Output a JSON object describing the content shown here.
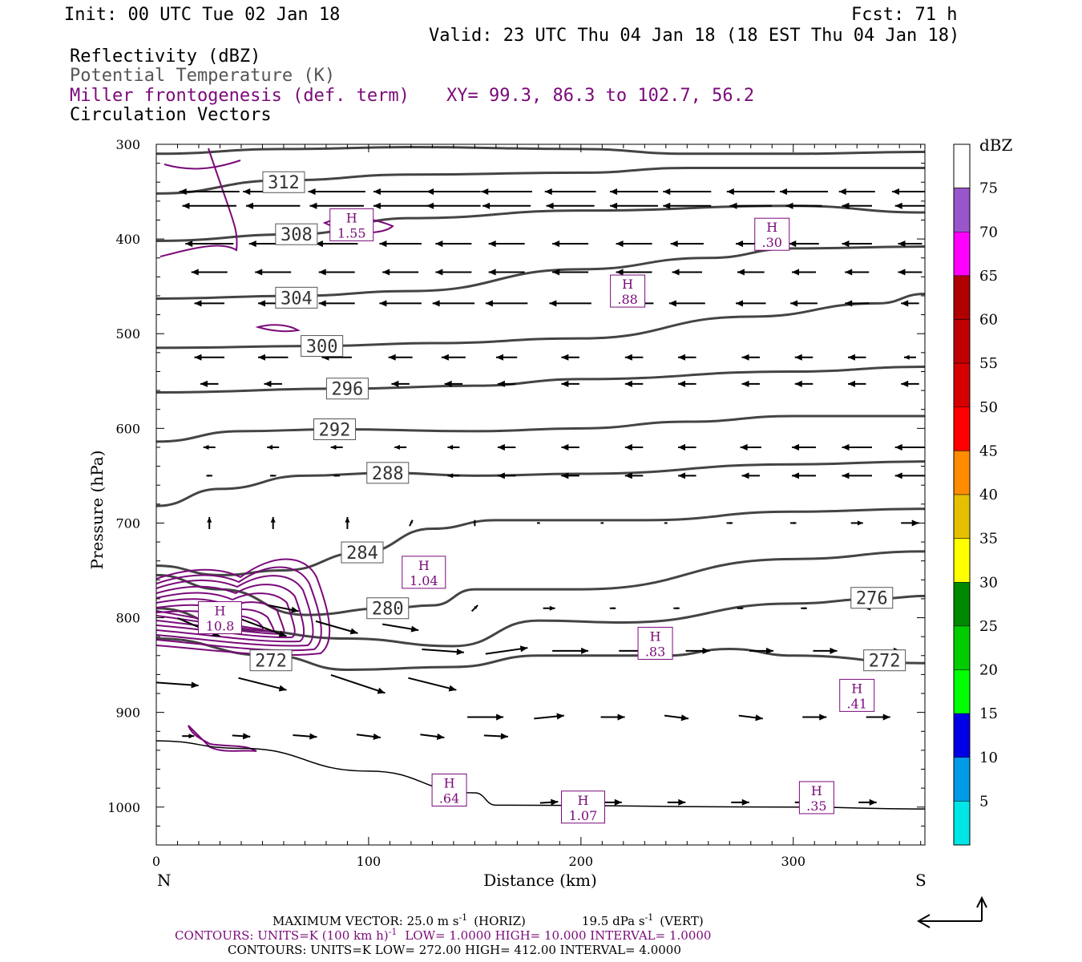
{
  "header": {
    "init": "Init: 00 UTC Tue 02 Jan 18",
    "fcst": "Fcst:   71 h",
    "valid": "Valid: 23 UTC Thu 04 Jan 18 (18 EST Thu 04 Jan 18)",
    "fields": [
      {
        "text": "Reflectivity (dBZ)",
        "color": "#000000"
      },
      {
        "text": "Potential Temperature (K)",
        "color": "#555555"
      },
      {
        "text": "Miller frontogenesis (def. term)",
        "color": "#7a0a7a"
      },
      {
        "text": "Circulation Vectors",
        "color": "#000000"
      }
    ],
    "xy": "XY=  99.3, 86.3 to 102.7, 56.2"
  },
  "colors": {
    "theta": "#444444",
    "frontogenesis": "#7a0a7a",
    "vectors": "#000000"
  },
  "chart_data": {
    "type": "cross-section",
    "xlabel": "Distance (km)",
    "ylabel": "Pressure (hPa)",
    "x_ticks": [
      0,
      100,
      200,
      300
    ],
    "y_ticks": [
      300,
      400,
      500,
      600,
      700,
      800,
      900,
      1000
    ],
    "xlim": [
      0,
      362
    ],
    "ylim": [
      300,
      1040
    ],
    "left_label": "N",
    "right_label": "S",
    "theta_contours": [
      {
        "value": "312",
        "label": [
          60,
          340
        ],
        "points": [
          [
            0,
            310
          ],
          [
            60,
            305
          ],
          [
            120,
            303
          ],
          [
            200,
            305
          ],
          [
            250,
            310
          ],
          [
            300,
            310
          ],
          [
            362,
            308
          ]
        ]
      },
      {
        "value": "312",
        "label": null,
        "points": [
          [
            0,
            352
          ],
          [
            60,
            338
          ],
          [
            120,
            332
          ],
          [
            200,
            330
          ],
          [
            250,
            325
          ],
          [
            300,
            325
          ],
          [
            362,
            325
          ]
        ]
      },
      {
        "value": "308",
        "label": [
          66,
          395
        ],
        "points": [
          [
            0,
            402
          ],
          [
            66,
            395
          ],
          [
            120,
            378
          ],
          [
            200,
            370
          ],
          [
            300,
            365
          ],
          [
            362,
            372
          ]
        ]
      },
      {
        "value": "304",
        "label": [
          66,
          462
        ],
        "points": [
          [
            0,
            463
          ],
          [
            66,
            460
          ],
          [
            120,
            455
          ],
          [
            200,
            432
          ],
          [
            260,
            420
          ],
          [
            300,
            410
          ],
          [
            362,
            408
          ]
        ]
      },
      {
        "value": "300",
        "label": [
          78,
          513
        ],
        "points": [
          [
            0,
            515
          ],
          [
            78,
            513
          ],
          [
            130,
            510
          ],
          [
            200,
            505
          ],
          [
            280,
            482
          ],
          [
            340,
            468
          ],
          [
            362,
            458
          ]
        ]
      },
      {
        "value": "296",
        "label": [
          90,
          558
        ],
        "points": [
          [
            0,
            562
          ],
          [
            90,
            558
          ],
          [
            150,
            555
          ],
          [
            200,
            548
          ],
          [
            300,
            540
          ],
          [
            362,
            535
          ]
        ]
      },
      {
        "value": "292",
        "label": [
          84,
          601
        ],
        "points": [
          [
            0,
            614
          ],
          [
            40,
            603
          ],
          [
            84,
            601
          ],
          [
            150,
            603
          ],
          [
            200,
            600
          ],
          [
            250,
            593
          ],
          [
            300,
            587
          ],
          [
            362,
            587
          ]
        ]
      },
      {
        "value": "288",
        "label": [
          109,
          647
        ],
        "points": [
          [
            0,
            682
          ],
          [
            30,
            664
          ],
          [
            70,
            650
          ],
          [
            109,
            647
          ],
          [
            150,
            650
          ],
          [
            200,
            648
          ],
          [
            300,
            638
          ],
          [
            362,
            635
          ]
        ]
      },
      {
        "value": "284",
        "label": [
          97,
          731
        ],
        "points": [
          [
            0,
            745
          ],
          [
            30,
            755
          ],
          [
            60,
            750
          ],
          [
            97,
            731
          ],
          [
            130,
            706
          ],
          [
            160,
            697
          ],
          [
            230,
            697
          ],
          [
            300,
            688
          ],
          [
            362,
            685
          ]
        ]
      },
      {
        "value": "280",
        "label": [
          109,
          790
        ],
        "points": [
          [
            0,
            755
          ],
          [
            30,
            770
          ],
          [
            70,
            797
          ],
          [
            109,
            790
          ],
          [
            130,
            787
          ],
          [
            150,
            770
          ],
          [
            200,
            770
          ],
          [
            300,
            738
          ],
          [
            362,
            730
          ]
        ]
      },
      {
        "value": "276",
        "label": null,
        "points": [
          [
            0,
            790
          ],
          [
            40,
            813
          ],
          [
            90,
            822
          ],
          [
            140,
            830
          ],
          [
            180,
            803
          ],
          [
            220,
            805
          ],
          [
            300,
            785
          ],
          [
            340,
            780
          ],
          [
            362,
            777
          ]
        ]
      },
      {
        "value": "276",
        "label": [
          337,
          779
        ],
        "points": []
      },
      {
        "value": "272",
        "label": [
          54,
          845
        ],
        "points": [
          [
            0,
            822
          ],
          [
            54,
            840
          ],
          [
            90,
            855
          ],
          [
            140,
            852
          ],
          [
            180,
            840
          ],
          [
            240,
            840
          ],
          [
            270,
            833
          ],
          [
            300,
            840
          ],
          [
            362,
            848
          ]
        ]
      },
      {
        "value": "272",
        "label": [
          343,
          845
        ],
        "points": []
      }
    ],
    "surface_line": [
      [
        0,
        930
      ],
      [
        40,
        938
      ],
      [
        100,
        962
      ],
      [
        150,
        985
      ],
      [
        160,
        998
      ],
      [
        300,
        1000
      ],
      [
        362,
        1002
      ]
    ],
    "frontogenesis_maxima": [
      {
        "label": "H",
        "value": "10.8",
        "x": 30,
        "p": 800
      },
      {
        "label": "H",
        "value": "1.55",
        "x": 92,
        "p": 385
      },
      {
        "label": "H",
        "value": ".30",
        "x": 290,
        "p": 395
      },
      {
        "label": "H",
        "value": ".88",
        "x": 222,
        "p": 455
      },
      {
        "label": "H",
        "value": "1.04",
        "x": 126,
        "p": 752
      },
      {
        "label": "H",
        "value": ".83",
        "x": 235,
        "p": 827
      },
      {
        "label": "H",
        "value": ".41",
        "x": 330,
        "p": 882
      },
      {
        "label": "H",
        "value": ".64",
        "x": 138,
        "p": 982
      },
      {
        "label": "H",
        "value": "1.07",
        "x": 201,
        "p": 1000
      },
      {
        "label": "H",
        "value": ".35",
        "x": 311,
        "p": 990
      }
    ],
    "vectors": {
      "rows": [
        {
          "p": 350,
          "u": [
            -1.0,
            -1.0,
            -0.95,
            -0.9,
            -0.9,
            -0.85,
            -0.85,
            -0.8,
            -0.8,
            -0.8,
            -0.8,
            -0.6,
            -0.6
          ]
        },
        {
          "p": 365,
          "u": [
            -0.9,
            -0.9,
            -0.9,
            -0.9,
            -0.9,
            -0.8,
            -0.8,
            -0.8,
            -0.8,
            -0.7,
            -0.6,
            -0.5,
            -0.5
          ]
        },
        {
          "p": 405,
          "u": [
            -0.8,
            -0.8,
            -0.7,
            -0.7,
            -0.6,
            -0.6,
            -0.6,
            -0.6,
            -0.55,
            -0.5,
            -0.5,
            -0.5,
            -0.4
          ]
        },
        {
          "p": 435,
          "u": [
            -0.6,
            -0.6,
            -0.6,
            -0.6,
            -0.6,
            -0.6,
            -0.6,
            -0.6,
            -0.5,
            -0.45,
            -0.4,
            -0.4,
            -0.4
          ]
        },
        {
          "p": 468,
          "u": [
            -0.5,
            -0.5,
            -0.6,
            -0.7,
            -0.7,
            -0.7,
            -0.7,
            -0.65,
            -0.6,
            -0.5,
            -0.45,
            -0.4,
            -0.3
          ]
        },
        {
          "p": 525,
          "u": [
            -0.5,
            -0.5,
            -0.5,
            -0.4,
            -0.4,
            -0.35,
            -0.3,
            -0.3,
            -0.3,
            -0.3,
            -0.3,
            -0.3,
            -0.2
          ]
        },
        {
          "p": 553,
          "u": [
            -0.3,
            -0.3,
            -0.3,
            -0.3,
            -0.3,
            -0.3,
            -0.3,
            -0.3,
            -0.3,
            -0.3,
            -0.3,
            -0.3,
            -0.3
          ]
        },
        {
          "p": 620,
          "u": [
            -0.2,
            -0.2,
            -0.2,
            -0.2,
            -0.2,
            -0.3,
            -0.3,
            -0.3,
            -0.3,
            -0.35,
            -0.4,
            -0.5,
            -0.5
          ]
        },
        {
          "p": 650,
          "u": [
            -0.1,
            -0.1,
            -0.1,
            -0.1,
            -0.2,
            -0.3,
            -0.3,
            -0.3,
            -0.3,
            -0.3,
            -0.4,
            -0.5,
            -0.5
          ]
        }
      ],
      "x": [
        25,
        55,
        85,
        115,
        140,
        165,
        195,
        225,
        250,
        280,
        305,
        330,
        355
      ]
    },
    "reflectivity_scale": {
      "units": "dBZ",
      "levels": [
        {
          "value": "5",
          "color": "#00e6e6"
        },
        {
          "value": "10",
          "color": "#009ae6"
        },
        {
          "value": "15",
          "color": "#0000e6"
        },
        {
          "value": "20",
          "color": "#00ff00"
        },
        {
          "value": "25",
          "color": "#00cc00"
        },
        {
          "value": "30",
          "color": "#008800"
        },
        {
          "value": "35",
          "color": "#ffff00"
        },
        {
          "value": "40",
          "color": "#e6c000"
        },
        {
          "value": "45",
          "color": "#ff8c00"
        },
        {
          "value": "50",
          "color": "#ff0000"
        },
        {
          "value": "55",
          "color": "#d60000"
        },
        {
          "value": "60",
          "color": "#c00000"
        },
        {
          "value": "65",
          "color": "#b00000"
        },
        {
          "value": "70",
          "color": "#ff00ff"
        },
        {
          "value": "75",
          "color": "#9955cc"
        }
      ]
    }
  },
  "footer": {
    "max_vector_prefix": "MAXIMUM VECTOR:  25.0 m s",
    "max_vector_horiz": "(HORIZ)",
    "max_vector_vert_value": "19.5 dPa s",
    "max_vector_vert": "(VERT)",
    "exp": "-1",
    "contours1_prefix": "CONTOURS:  UNITS=K (100 km h)",
    "contours1_rest": "LOW=   1.0000       HIGH=  10.000       INTERVAL=    1.0000",
    "contours2": "CONTOURS:  UNITS=K  LOW=   272.00       HIGH=   412.00       INTERVAL=    4.0000"
  }
}
